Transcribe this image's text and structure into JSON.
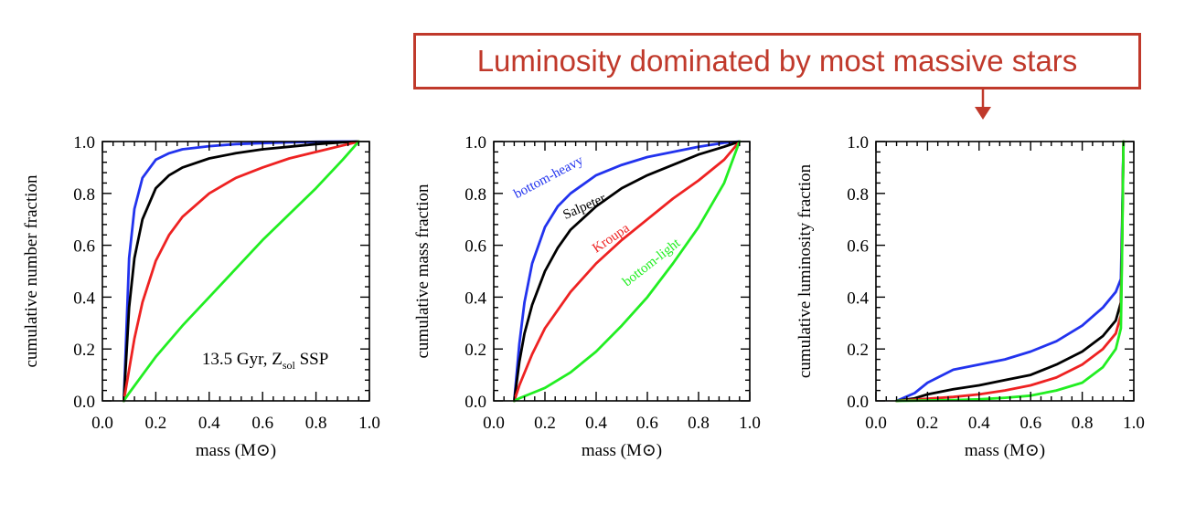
{
  "annotation": {
    "text": "Luminosity dominated by most massive stars",
    "color": "#c0392b"
  },
  "colors": {
    "bottom_heavy": "#2233ee",
    "salpeter": "#000000",
    "kroupa": "#ee2222",
    "bottom_light": "#22ee22"
  },
  "chart_data": [
    {
      "type": "line",
      "xlabel": "mass (M⊙)",
      "ylabel": "cumulative number fraction",
      "xlim": [
        0.0,
        1.0
      ],
      "ylim": [
        0.0,
        1.0
      ],
      "xticks": [
        "0.0",
        "0.2",
        "0.4",
        "0.6",
        "0.8",
        "1.0"
      ],
      "yticks": [
        "0.0",
        "0.2",
        "0.4",
        "0.6",
        "0.8",
        "1.0"
      ],
      "annotations": [
        {
          "text": "13.5 Gyr, Z",
          "sub": "sol",
          "suffix": " SSP",
          "x": 0.61,
          "y": 0.14
        }
      ],
      "series": [
        {
          "key": "bottom_heavy",
          "x": [
            0.08,
            0.1,
            0.12,
            0.15,
            0.2,
            0.25,
            0.3,
            0.4,
            0.5,
            0.6,
            0.7,
            0.8,
            0.9,
            0.96
          ],
          "y": [
            0.0,
            0.55,
            0.74,
            0.86,
            0.93,
            0.955,
            0.97,
            0.982,
            0.99,
            0.994,
            0.997,
            0.999,
            1.0,
            1.0
          ]
        },
        {
          "key": "salpeter",
          "x": [
            0.08,
            0.1,
            0.12,
            0.15,
            0.2,
            0.25,
            0.3,
            0.4,
            0.5,
            0.6,
            0.7,
            0.8,
            0.9,
            0.96
          ],
          "y": [
            0.0,
            0.36,
            0.55,
            0.7,
            0.82,
            0.87,
            0.9,
            0.935,
            0.955,
            0.97,
            0.98,
            0.99,
            0.997,
            1.0
          ]
        },
        {
          "key": "kroupa",
          "x": [
            0.08,
            0.1,
            0.12,
            0.15,
            0.2,
            0.25,
            0.3,
            0.4,
            0.5,
            0.6,
            0.7,
            0.8,
            0.9,
            0.96
          ],
          "y": [
            0.0,
            0.12,
            0.24,
            0.38,
            0.54,
            0.64,
            0.71,
            0.8,
            0.86,
            0.9,
            0.935,
            0.96,
            0.985,
            1.0
          ]
        },
        {
          "key": "bottom_light",
          "x": [
            0.08,
            0.1,
            0.15,
            0.2,
            0.3,
            0.4,
            0.5,
            0.6,
            0.7,
            0.8,
            0.9,
            0.96
          ],
          "y": [
            0.0,
            0.03,
            0.1,
            0.17,
            0.29,
            0.4,
            0.51,
            0.62,
            0.72,
            0.82,
            0.93,
            1.0
          ]
        }
      ]
    },
    {
      "type": "line",
      "xlabel": "mass (M⊙)",
      "ylabel": "cumulative mass fraction",
      "xlim": [
        0.0,
        1.0
      ],
      "ylim": [
        0.0,
        1.0
      ],
      "xticks": [
        "0.0",
        "0.2",
        "0.4",
        "0.6",
        "0.8",
        "1.0"
      ],
      "yticks": [
        "0.0",
        "0.2",
        "0.4",
        "0.6",
        "0.8",
        "1.0"
      ],
      "annotations": [],
      "series": [
        {
          "key": "bottom_heavy",
          "label": "bottom-heavy",
          "label_at": [
            0.09,
            0.78
          ],
          "label_rot": -28,
          "x": [
            0.08,
            0.1,
            0.12,
            0.15,
            0.2,
            0.25,
            0.3,
            0.4,
            0.5,
            0.6,
            0.7,
            0.8,
            0.9,
            0.96
          ],
          "y": [
            0.0,
            0.22,
            0.38,
            0.53,
            0.67,
            0.75,
            0.8,
            0.87,
            0.91,
            0.94,
            0.96,
            0.98,
            0.995,
            1.0
          ]
        },
        {
          "key": "salpeter",
          "label": "Salpeter",
          "label_at": [
            0.28,
            0.7
          ],
          "label_rot": -24,
          "x": [
            0.08,
            0.1,
            0.12,
            0.15,
            0.2,
            0.25,
            0.3,
            0.4,
            0.5,
            0.6,
            0.7,
            0.8,
            0.9,
            0.96
          ],
          "y": [
            0.0,
            0.15,
            0.26,
            0.37,
            0.5,
            0.59,
            0.66,
            0.75,
            0.82,
            0.87,
            0.91,
            0.95,
            0.98,
            1.0
          ]
        },
        {
          "key": "kroupa",
          "label": "Kroupa",
          "label_at": [
            0.4,
            0.57
          ],
          "label_rot": -34,
          "x": [
            0.08,
            0.1,
            0.15,
            0.2,
            0.3,
            0.4,
            0.5,
            0.6,
            0.7,
            0.8,
            0.9,
            0.96
          ],
          "y": [
            0.0,
            0.06,
            0.18,
            0.28,
            0.42,
            0.53,
            0.62,
            0.7,
            0.78,
            0.85,
            0.93,
            1.0
          ]
        },
        {
          "key": "bottom_light",
          "label": "bottom-light",
          "label_at": [
            0.52,
            0.44
          ],
          "label_rot": -38,
          "x": [
            0.08,
            0.1,
            0.15,
            0.2,
            0.3,
            0.4,
            0.5,
            0.6,
            0.7,
            0.8,
            0.9,
            0.96
          ],
          "y": [
            0.0,
            0.01,
            0.03,
            0.05,
            0.11,
            0.19,
            0.29,
            0.4,
            0.53,
            0.67,
            0.84,
            1.0
          ]
        }
      ]
    },
    {
      "type": "line",
      "xlabel": "mass (M⊙)",
      "ylabel": "cumulative luminosity fraction",
      "xlim": [
        0.0,
        1.0
      ],
      "ylim": [
        0.0,
        1.0
      ],
      "xticks": [
        "0.0",
        "0.2",
        "0.4",
        "0.6",
        "0.8",
        "1.0"
      ],
      "yticks": [
        "0.0",
        "0.2",
        "0.4",
        "0.6",
        "0.8",
        "1.0"
      ],
      "annotations": [],
      "series": [
        {
          "key": "bottom_heavy",
          "x": [
            0.08,
            0.15,
            0.2,
            0.3,
            0.4,
            0.5,
            0.6,
            0.7,
            0.8,
            0.88,
            0.93,
            0.95,
            0.955,
            0.96
          ],
          "y": [
            0.0,
            0.03,
            0.07,
            0.12,
            0.14,
            0.16,
            0.19,
            0.23,
            0.29,
            0.36,
            0.42,
            0.47,
            0.7,
            1.0
          ]
        },
        {
          "key": "salpeter",
          "x": [
            0.08,
            0.15,
            0.2,
            0.3,
            0.4,
            0.5,
            0.6,
            0.7,
            0.8,
            0.88,
            0.93,
            0.95,
            0.955,
            0.96
          ],
          "y": [
            0.0,
            0.01,
            0.025,
            0.045,
            0.06,
            0.08,
            0.1,
            0.14,
            0.19,
            0.25,
            0.31,
            0.38,
            0.65,
            1.0
          ]
        },
        {
          "key": "kroupa",
          "x": [
            0.08,
            0.2,
            0.3,
            0.4,
            0.5,
            0.6,
            0.7,
            0.8,
            0.88,
            0.93,
            0.95,
            0.955,
            0.96
          ],
          "y": [
            0.0,
            0.008,
            0.015,
            0.025,
            0.04,
            0.06,
            0.09,
            0.14,
            0.2,
            0.26,
            0.33,
            0.62,
            1.0
          ]
        },
        {
          "key": "bottom_light",
          "x": [
            0.08,
            0.3,
            0.4,
            0.5,
            0.6,
            0.7,
            0.8,
            0.88,
            0.93,
            0.95,
            0.955,
            0.96
          ],
          "y": [
            0.0,
            0.003,
            0.006,
            0.012,
            0.02,
            0.04,
            0.07,
            0.13,
            0.2,
            0.28,
            0.6,
            1.0
          ]
        }
      ]
    }
  ]
}
